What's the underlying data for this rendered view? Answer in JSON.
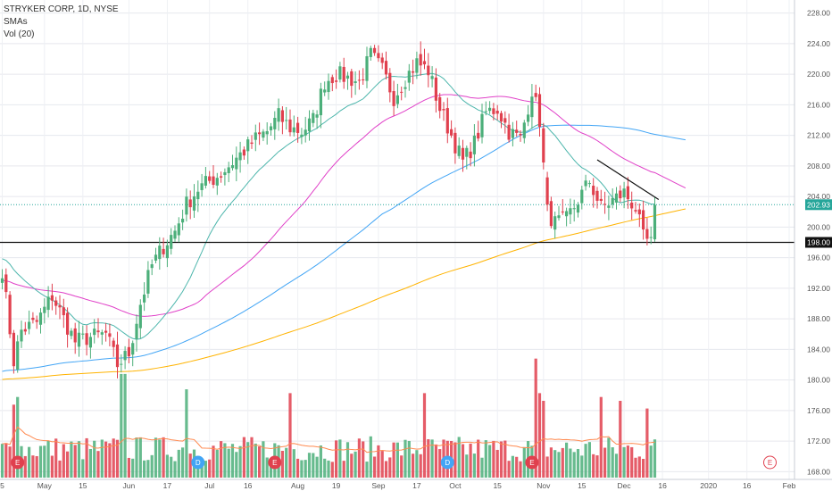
{
  "legend": {
    "symbol": "STRYKER CORP, 1D, NYSE",
    "sma": "SMAs",
    "vol": "Vol (20)"
  },
  "colors": {
    "up": "#4caf7a",
    "down": "#e0404e",
    "sma20": "#4db6ac",
    "sma50": "#e040c8",
    "sma100": "#42a5f5",
    "sma200": "#ffb300",
    "vol_ma": "#ff8a50",
    "trendline": "#111111",
    "support": "#111111",
    "price_tag": "#26a69a"
  },
  "chart_data": {
    "type": "candlestick",
    "ylim": [
      167.0,
      229.0
    ],
    "y_ticks": [
      "168.00",
      "172.00",
      "176.00",
      "180.00",
      "184.00",
      "188.00",
      "192.00",
      "196.00",
      "200.00",
      "204.00",
      "208.00",
      "212.00",
      "216.00",
      "220.00",
      "224.00",
      "228.00"
    ],
    "x_labels": [
      {
        "label": "5",
        "i": 0
      },
      {
        "label": "May",
        "i": 11
      },
      {
        "label": "15",
        "i": 21
      },
      {
        "label": "Jun",
        "i": 33
      },
      {
        "label": "17",
        "i": 43
      },
      {
        "label": "Jul",
        "i": 54
      },
      {
        "label": "16",
        "i": 64
      },
      {
        "label": "Aug",
        "i": 77
      },
      {
        "label": "19",
        "i": 87
      },
      {
        "label": "Sep",
        "i": 98
      },
      {
        "label": "17",
        "i": 108
      },
      {
        "label": "Oct",
        "i": 118
      },
      {
        "label": "15",
        "i": 129
      },
      {
        "label": "Nov",
        "i": 141
      },
      {
        "label": "15",
        "i": 151
      },
      {
        "label": "Dec",
        "i": 162
      },
      {
        "label": "16",
        "i": 172
      },
      {
        "label": "2020",
        "i": 184
      },
      {
        "label": "16",
        "i": 194
      },
      {
        "label": "Feb",
        "i": 205
      }
    ],
    "earnings": [
      {
        "label": "E",
        "i": 4,
        "past": true
      },
      {
        "label": "D",
        "i": 51,
        "past": true
      },
      {
        "label": "E",
        "i": 71,
        "past": true
      },
      {
        "label": "D",
        "i": 116,
        "past": true
      },
      {
        "label": "E",
        "i": 138,
        "past": true
      },
      {
        "label": "E",
        "i": 200,
        "past": false
      }
    ],
    "last_price": 202.93,
    "support_level": 198.0,
    "trendline": {
      "from": {
        "i": 155,
        "price": 208.8
      },
      "to": {
        "i": 171,
        "price": 203.6
      }
    },
    "anchors": [
      [
        0,
        194.5
      ],
      [
        3,
        182.5
      ],
      [
        5,
        186.5
      ],
      [
        9,
        187.5
      ],
      [
        13,
        191.0
      ],
      [
        16,
        188.0
      ],
      [
        19,
        185.0
      ],
      [
        22,
        185.5
      ],
      [
        27,
        186.0
      ],
      [
        30,
        182.0
      ],
      [
        33,
        183.5
      ],
      [
        36,
        190.0
      ],
      [
        39,
        195.0
      ],
      [
        42,
        197.5
      ],
      [
        45,
        199.5
      ],
      [
        48,
        203.0
      ],
      [
        51,
        205.0
      ],
      [
        54,
        206.0
      ],
      [
        57,
        207.0
      ],
      [
        60,
        208.5
      ],
      [
        63,
        210.0
      ],
      [
        66,
        211.5
      ],
      [
        69,
        212.5
      ],
      [
        72,
        214.5
      ],
      [
        75,
        213.0
      ],
      [
        78,
        212.5
      ],
      [
        81,
        214.0
      ],
      [
        84,
        219.0
      ],
      [
        87,
        220.0
      ],
      [
        90,
        219.5
      ],
      [
        93,
        219.0
      ],
      [
        96,
        222.5
      ],
      [
        99,
        220.5
      ],
      [
        102,
        217.0
      ],
      [
        105,
        219.5
      ],
      [
        108,
        221.5
      ],
      [
        111,
        220.5
      ],
      [
        114,
        215.5
      ],
      [
        117,
        212.0
      ],
      [
        120,
        208.5
      ],
      [
        123,
        211.0
      ],
      [
        126,
        215.0
      ],
      [
        129,
        215.5
      ],
      [
        132,
        212.5
      ],
      [
        135,
        211.5
      ],
      [
        138,
        218.0
      ],
      [
        140,
        214.0
      ],
      [
        142,
        202.0
      ],
      [
        144,
        200.5
      ],
      [
        147,
        201.0
      ],
      [
        150,
        203.5
      ],
      [
        153,
        206.0
      ],
      [
        156,
        202.5
      ],
      [
        159,
        203.5
      ],
      [
        162,
        204.5
      ],
      [
        165,
        202.5
      ],
      [
        167,
        198.5
      ],
      [
        169,
        197.8
      ],
      [
        170,
        202.9
      ]
    ],
    "spikes": {
      "3": 176.5,
      "4": 177.5,
      "31": 180.5,
      "32": 180.5,
      "48": 178.5,
      "75": 178.0,
      "110": 178.0,
      "139": 182.5,
      "140": 178.0,
      "141": 177.0,
      "156": 177.5,
      "161": 177.0,
      "168": 176.0
    },
    "volume_ylim": [
      0,
      100
    ],
    "base_volume": 24,
    "note_volume": "volume bars in relative units, highest spike = 100"
  }
}
